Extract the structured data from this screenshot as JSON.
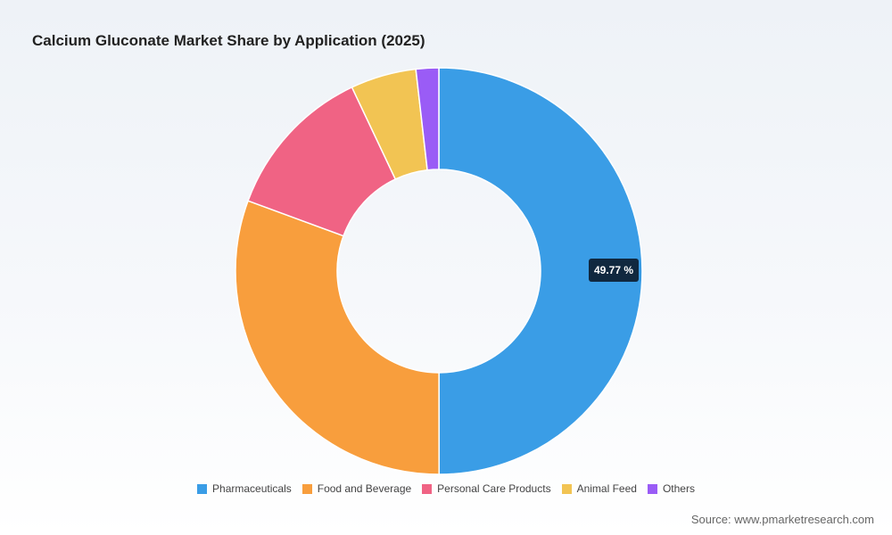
{
  "page": {
    "title": "Calcium Gluconate Market Share by Application (2025)",
    "source": "Source: www.pmarketresearch.com"
  },
  "chart_data": {
    "type": "pie",
    "variant": "donut",
    "title": "Calcium Gluconate Market Share by Application (2025)",
    "unit": "%",
    "categories": [
      "Pharmaceuticals",
      "Food and Beverage",
      "Personal Care Products",
      "Animal Feed",
      "Others"
    ],
    "values": [
      49.77,
      30.5,
      12.3,
      5.2,
      1.8
    ],
    "colors": [
      "#3a9de6",
      "#f89e3d",
      "#f06384",
      "#f2c453",
      "#9a5cf6"
    ],
    "data_labels": [
      {
        "category": "Pharmaceuticals",
        "text": "49.77 %"
      }
    ],
    "legend_position": "bottom"
  }
}
